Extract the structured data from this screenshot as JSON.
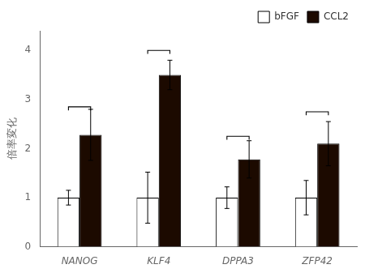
{
  "chart_data": {
    "type": "bar",
    "categories": [
      "NANOG",
      "KLF4",
      "DPPA3",
      "ZFP42"
    ],
    "series": [
      {
        "name": "bFGF",
        "color": "#ffffff",
        "values": [
          1.0,
          1.0,
          1.0,
          1.0
        ],
        "errors": [
          0.15,
          0.52,
          0.22,
          0.35
        ]
      },
      {
        "name": "CCL2",
        "color": "#1c0a00",
        "values": [
          2.28,
          3.5,
          1.78,
          2.1
        ],
        "errors": [
          0.52,
          0.3,
          0.38,
          0.45
        ]
      }
    ],
    "ylabel": "倍率変化",
    "ylim": [
      0,
      4.4
    ],
    "yticks": [
      0,
      1,
      2,
      3,
      4
    ],
    "grid": false,
    "legend": "upper right",
    "bracket_heights": [
      2.85,
      4.0,
      2.25,
      2.75
    ],
    "bracket_tick_drop": 0.07
  }
}
